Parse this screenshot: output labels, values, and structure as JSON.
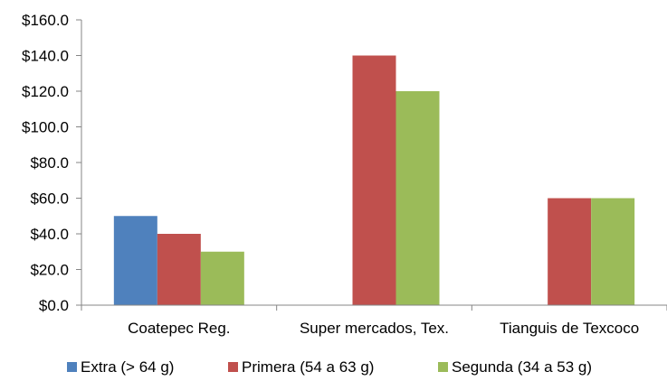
{
  "chart_data": {
    "type": "bar",
    "categories": [
      "Coatepec Reg.",
      "Super mercados, Tex.",
      "Tianguis de Texcoco"
    ],
    "series": [
      {
        "name": "Extra (> 64 g)",
        "values": [
          50,
          0,
          0
        ],
        "color": "#4F81BD"
      },
      {
        "name": "Primera (54 a 63 g)",
        "values": [
          40,
          140,
          60
        ],
        "color": "#C0504D"
      },
      {
        "name": "Segunda (34 a 53 g)",
        "values": [
          30,
          120,
          60
        ],
        "color": "#9BBB59"
      }
    ],
    "y_tick_labels": [
      "$0.0",
      "$20.0",
      "$40.0",
      "$60.0",
      "$80.0",
      "$100.0",
      "$120.0",
      "$140.0",
      "$160.0"
    ],
    "ylim": [
      0,
      160
    ],
    "grid": false,
    "legend_position": "bottom"
  }
}
